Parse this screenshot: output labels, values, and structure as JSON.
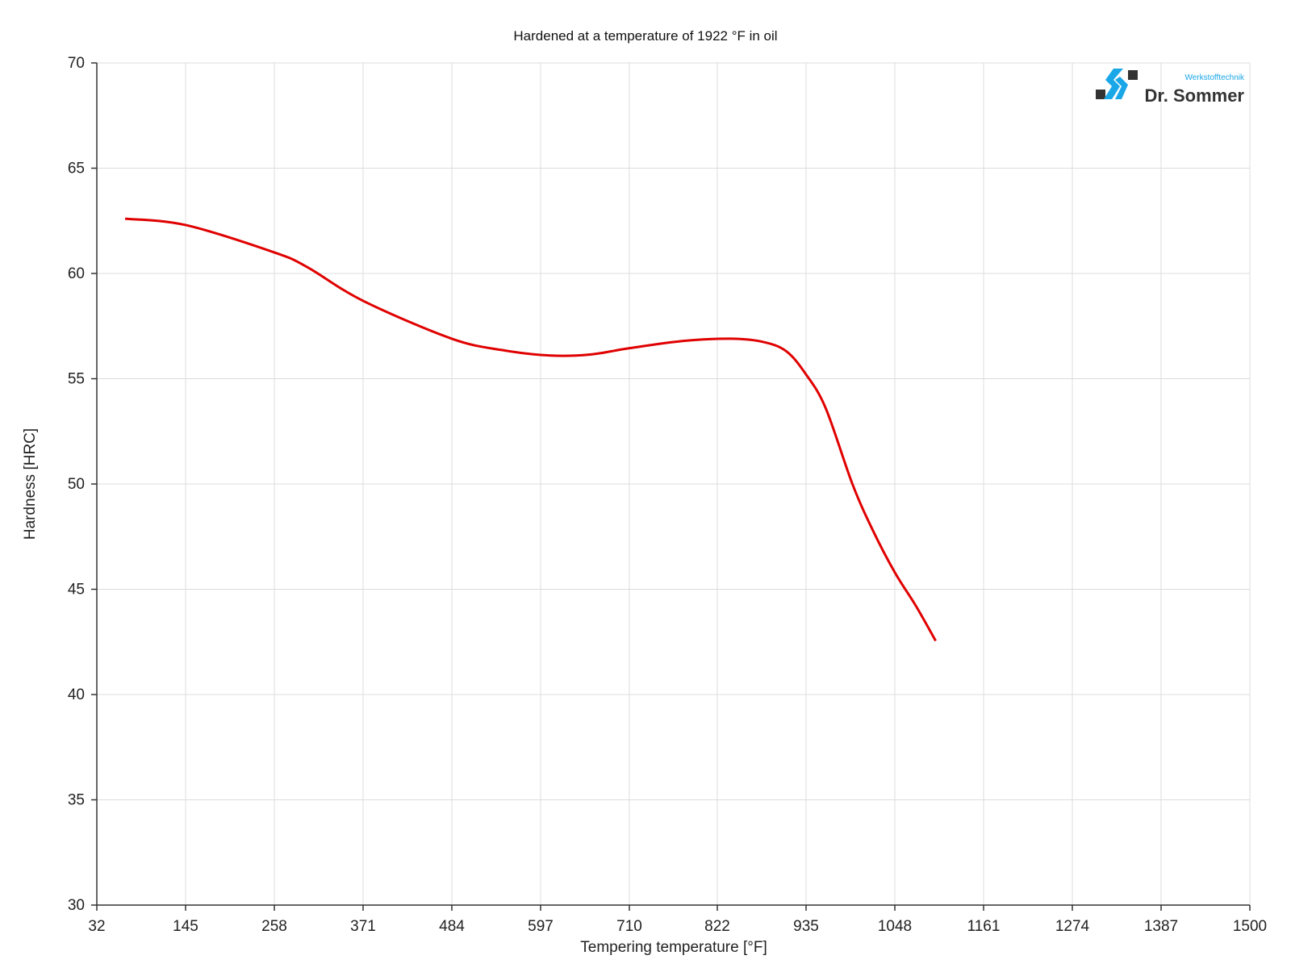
{
  "chart_data": {
    "type": "line",
    "title": "Hardened at a temperature of 1922 °F in oil",
    "xlabel": "Tempering temperature [°F]",
    "ylabel": "Hardness [HRC]",
    "xlim": [
      32,
      1500
    ],
    "ylim": [
      30,
      70
    ],
    "x_ticks": [
      32,
      145,
      258,
      371,
      484,
      597,
      710,
      822,
      935,
      1048,
      1161,
      1274,
      1387,
      1500
    ],
    "y_ticks": [
      30,
      35,
      40,
      45,
      50,
      55,
      60,
      65,
      70
    ],
    "grid": true,
    "series": [
      {
        "name": "Hardness",
        "color": "#e00000",
        "x": [
          68,
          145,
          258,
          300,
          371,
          484,
          550,
          610,
          660,
          710,
          780,
          840,
          880,
          910,
          935,
          960,
          994,
          1020,
          1048,
          1075,
          1100
        ],
        "y": [
          62.6,
          62.3,
          61.0,
          60.3,
          58.7,
          56.9,
          56.35,
          56.1,
          56.15,
          56.45,
          56.8,
          56.9,
          56.75,
          56.3,
          55.2,
          53.6,
          50.0,
          47.8,
          45.8,
          44.2,
          42.55
        ]
      }
    ]
  },
  "logo": {
    "brand": "Dr. Sommer",
    "subtitle": "Werkstofftechnik",
    "accent": "#1aa7e8",
    "dark": "#333333"
  }
}
